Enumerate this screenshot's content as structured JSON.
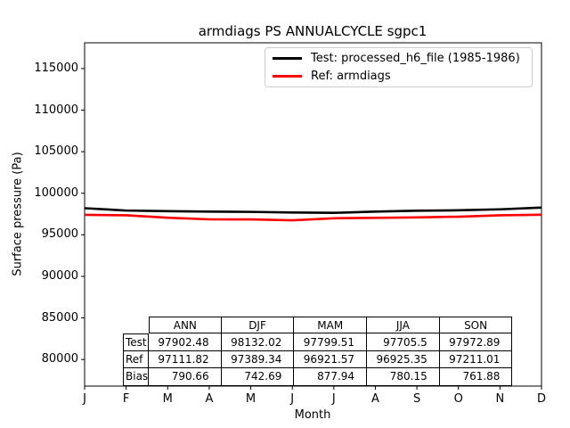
{
  "title": "armdiags PS ANNUALCYCLE sgpc1",
  "chart_data": {
    "type": "line",
    "title": "armdiags PS ANNUALCYCLE sgpc1",
    "xlabel": "Month",
    "ylabel": "Surface pressure (Pa)",
    "x_ticklabels": [
      "J",
      "F",
      "M",
      "A",
      "M",
      "J",
      "J",
      "A",
      "S",
      "O",
      "N",
      "D"
    ],
    "y_ticks": [
      115000,
      110000,
      105000,
      100000,
      95000,
      90000,
      85000,
      80000
    ],
    "ylim": [
      76800,
      118100
    ],
    "grid": false,
    "legend_position": "upper right",
    "series": [
      {
        "name": "Test: processed_h6_file (1985-1986)",
        "color": "#000000",
        "values": [
          98200,
          97920,
          97850,
          97790,
          97758,
          97680,
          97640,
          97796,
          97900,
          97950,
          98068,
          98276
        ]
      },
      {
        "name": "Ref: armdiags",
        "color": "#ff0000",
        "values": [
          97400,
          97348,
          97050,
          96860,
          96855,
          96750,
          96990,
          97036,
          97100,
          97180,
          97353,
          97420
        ]
      }
    ],
    "stats_table": {
      "columns": [
        "ANN",
        "DJF",
        "MAM",
        "JJA",
        "SON"
      ],
      "rows": [
        {
          "label": "Test",
          "values": [
            "97902.48",
            "98132.02",
            "97799.51",
            "97705.5",
            "97972.89"
          ]
        },
        {
          "label": "Ref",
          "values": [
            "97111.82",
            "97389.34",
            "96921.57",
            "96925.35",
            "97211.01"
          ]
        },
        {
          "label": "Bias",
          "values": [
            "790.66",
            "742.69",
            "877.94",
            "780.15",
            "761.88"
          ]
        }
      ]
    }
  }
}
